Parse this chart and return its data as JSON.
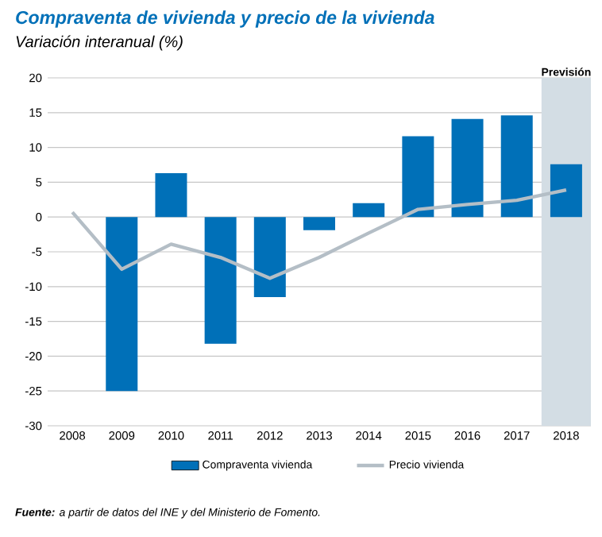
{
  "chart_data": {
    "type": "bar",
    "title": "Compraventa de vivienda y precio de la vivienda",
    "subtitle": "Variación interanual (%)",
    "categories": [
      "2008",
      "2009",
      "2010",
      "2011",
      "2012",
      "2013",
      "2014",
      "2015",
      "2016",
      "2017",
      "2018"
    ],
    "series": [
      {
        "name": "Compraventa vivienda",
        "color": "#0070b8",
        "values": [
          null,
          -25,
          6.3,
          -18.2,
          -11.5,
          -1.9,
          2.0,
          11.6,
          14.1,
          14.6,
          7.6
        ]
      },
      {
        "name": "Precio vivienda",
        "type": "line",
        "color": "#b4bec6",
        "values": [
          0.7,
          -7.5,
          -3.9,
          -5.8,
          -8.8,
          -5.8,
          -2.3,
          1.1,
          1.8,
          2.4,
          3.9
        ]
      }
    ],
    "ylim": [
      -30,
      20
    ],
    "yticks": [
      -30,
      -25,
      -20,
      -15,
      -10,
      -5,
      0,
      5,
      10,
      15,
      20
    ],
    "bands": [
      {
        "axis": "x",
        "from": "2018",
        "to": "2018",
        "label": "Previsión",
        "color": "#d3dde4"
      }
    ],
    "grid": "y",
    "legend": "bottom",
    "marker": "none",
    "line_style": "solid",
    "annotations": [
      "**Fuente:** a partir de datos del INE y del Ministerio de Fomento."
    ]
  }
}
